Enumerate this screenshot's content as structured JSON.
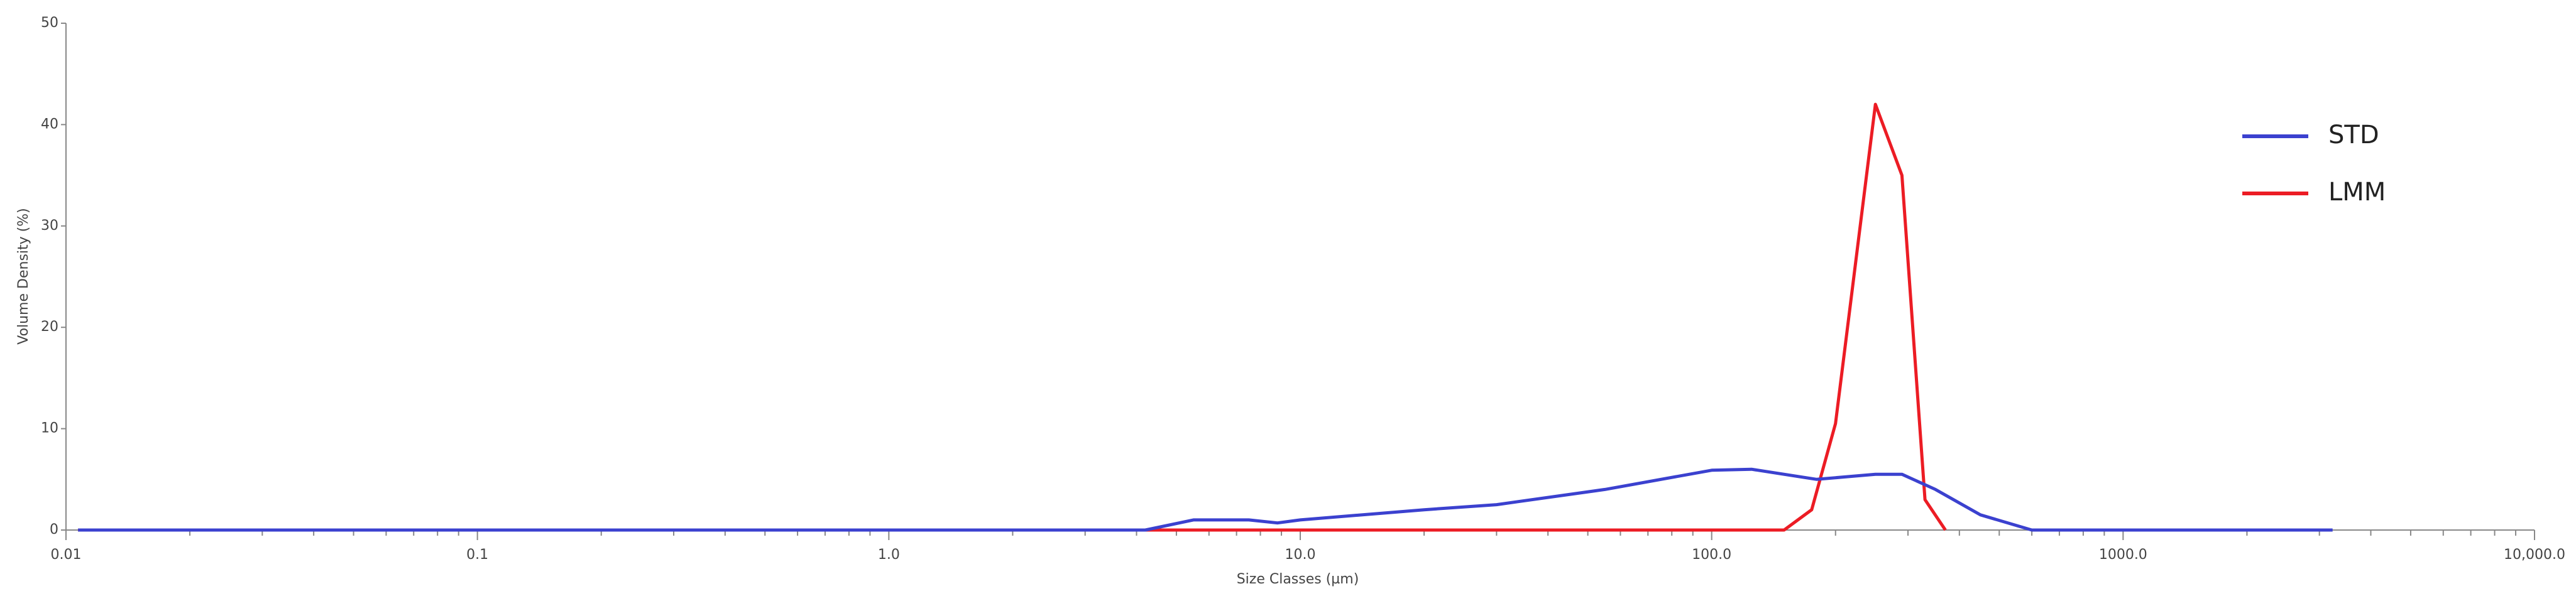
{
  "chart_data": {
    "type": "line",
    "x_label": "Size Classes (µm)",
    "y_label": "Volume Density (%)",
    "xscale": "log",
    "xlim": [
      0.01,
      10000
    ],
    "xticks": [
      0.01,
      0.1,
      {
        "value": 1,
        "label": "1.0"
      },
      {
        "value": 10,
        "label": "10.0"
      },
      {
        "value": 100,
        "label": "100.0"
      },
      {
        "value": 1000,
        "label": "1000.0"
      },
      {
        "value": 10000,
        "label": "10,000.0"
      }
    ],
    "xminorticks": [
      0.02,
      0.03,
      0.04,
      0.05,
      0.06,
      0.07,
      0.08,
      0.09,
      0.2,
      0.3,
      0.4,
      0.5,
      0.6,
      0.7,
      0.8,
      0.9,
      2,
      3,
      4,
      5,
      6,
      7,
      8,
      9,
      20,
      30,
      40,
      50,
      60,
      70,
      80,
      90,
      200,
      300,
      400,
      500,
      600,
      700,
      800,
      900,
      2000,
      3000,
      4000,
      5000,
      6000,
      7000,
      8000,
      9000
    ],
    "ylim": [
      0,
      50
    ],
    "yticks": [
      0,
      10,
      20,
      30,
      40,
      50
    ],
    "legend": "upper right",
    "series": [
      {
        "name": "STD",
        "color": "#3b41cf",
        "x": [
          0.0107,
          4.2,
          5.5,
          7.5,
          8.8,
          10,
          20,
          30,
          55,
          100,
          125,
          180,
          250,
          290,
          350,
          450,
          600,
          3230
        ],
        "values": [
          0,
          0,
          1.0,
          1.0,
          0.7,
          1.0,
          2.0,
          2.5,
          4.0,
          5.9,
          6.0,
          5.0,
          5.5,
          5.5,
          4.0,
          1.5,
          0,
          0
        ]
      },
      {
        "name": "LMM",
        "color": "#ec1c24",
        "x": [
          0.0107,
          150,
          175,
          200,
          250,
          290,
          330,
          370
        ],
        "values": [
          0,
          0,
          2,
          10.5,
          42,
          35,
          3,
          0
        ]
      }
    ]
  }
}
